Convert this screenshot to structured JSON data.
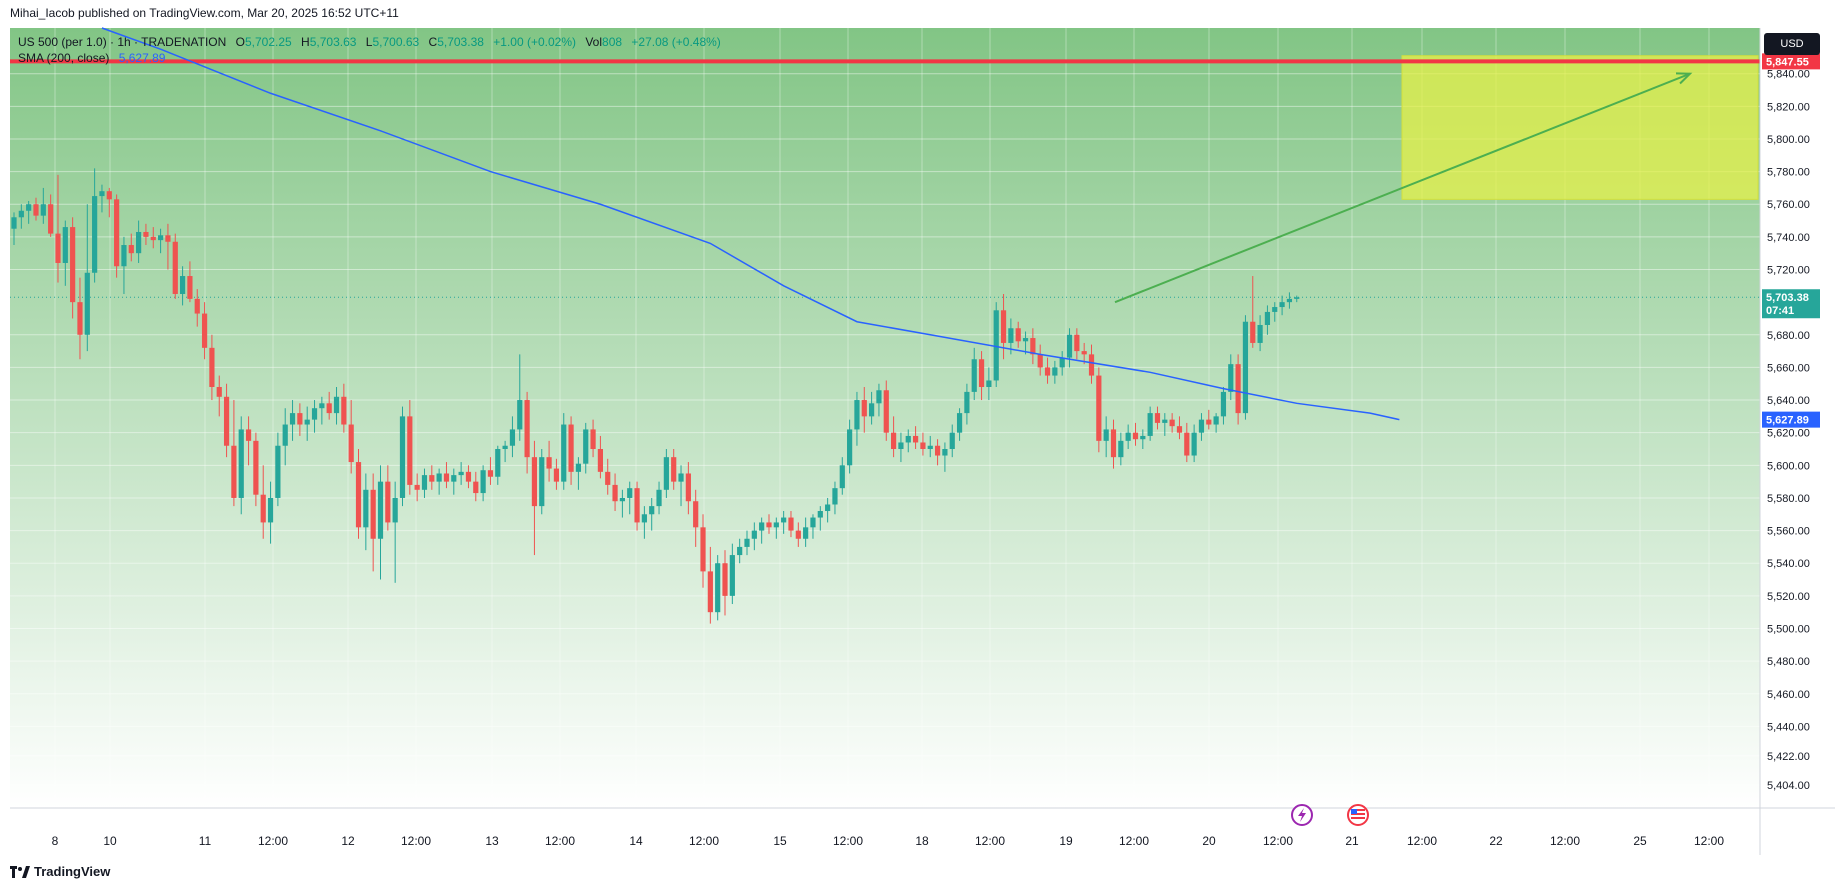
{
  "header": {
    "published_by": "Mihai_Iacob published on TradingView.com, Mar 20, 2025 16:52 UTC+11"
  },
  "legend": {
    "symbol": "US 500 (per 1.0) · 1h · TRADENATION",
    "o_label": "O",
    "o_value": "5,702.25",
    "h_label": "H",
    "h_value": "5,703.63",
    "l_label": "L",
    "l_value": "5,700.63",
    "c_label": "C",
    "c_value": "5,703.38",
    "change": "+1.00 (+0.02%)",
    "vol_label": "Vol",
    "vol_value": "808",
    "vol_change": "+27.08 (+0.48%)",
    "sma_label": "SMA (200, close)",
    "sma_value": "5,627.89"
  },
  "currency_label": "USD",
  "logo_text": "TradingView",
  "colors": {
    "up": "#26a69a",
    "down": "#ef5350",
    "sma": "#2962ff",
    "resistance": "#f23645",
    "target_box": "#e5f04a",
    "arrow": "#4caf50",
    "bg_top": "#82c585",
    "bg_bottom": "#ffffff"
  },
  "chart_data": {
    "type": "candlestick",
    "ylim": [
      5390,
      5868
    ],
    "y_ticks": [
      "5,840.00",
      "5,820.00",
      "5,800.00",
      "5,780.00",
      "5,760.00",
      "5,740.00",
      "5,720.00",
      "5,680.00",
      "5,660.00",
      "5,640.00",
      "5,620.00",
      "5,600.00",
      "5,580.00",
      "5,560.00",
      "5,540.00",
      "5,520.00",
      "5,500.00",
      "5,480.00",
      "5,460.00",
      "5,440.00",
      "5,422.00",
      "5,404.00"
    ],
    "x_ticks": [
      "8",
      "10",
      "11",
      "12:00",
      "12",
      "12:00",
      "13",
      "12:00",
      "14",
      "12:00",
      "15",
      "12:00",
      "18",
      "12:00",
      "19",
      "12:00",
      "20",
      "12:00",
      "21",
      "12:00",
      "22",
      "12:00",
      "25",
      "12:00"
    ],
    "resistance_level": 5847.55,
    "resistance_label": "5,847.55",
    "last_price_label": "5,703.38",
    "countdown_label": "07:41",
    "sma_label": "5,627.89",
    "target_zone": {
      "y_top": 5851,
      "y_bottom": 5763
    },
    "projection": {
      "from": 5700,
      "to": 5840
    },
    "candles": [
      {
        "o": 5745,
        "h": 5755,
        "l": 5735,
        "c": 5752
      },
      {
        "o": 5752,
        "h": 5760,
        "l": 5745,
        "c": 5756
      },
      {
        "o": 5756,
        "h": 5762,
        "l": 5748,
        "c": 5760
      },
      {
        "o": 5760,
        "h": 5764,
        "l": 5750,
        "c": 5753
      },
      {
        "o": 5753,
        "h": 5770,
        "l": 5748,
        "c": 5760
      },
      {
        "o": 5760,
        "h": 5766,
        "l": 5740,
        "c": 5742
      },
      {
        "o": 5742,
        "h": 5778,
        "l": 5712,
        "c": 5724
      },
      {
        "o": 5724,
        "h": 5750,
        "l": 5710,
        "c": 5746
      },
      {
        "o": 5746,
        "h": 5752,
        "l": 5690,
        "c": 5700
      },
      {
        "o": 5700,
        "h": 5715,
        "l": 5665,
        "c": 5680
      },
      {
        "o": 5680,
        "h": 5760,
        "l": 5670,
        "c": 5718
      },
      {
        "o": 5718,
        "h": 5782,
        "l": 5712,
        "c": 5765
      },
      {
        "o": 5765,
        "h": 5772,
        "l": 5755,
        "c": 5768
      },
      {
        "o": 5768,
        "h": 5770,
        "l": 5752,
        "c": 5763
      },
      {
        "o": 5763,
        "h": 5766,
        "l": 5715,
        "c": 5722
      },
      {
        "o": 5722,
        "h": 5740,
        "l": 5705,
        "c": 5735
      },
      {
        "o": 5735,
        "h": 5742,
        "l": 5725,
        "c": 5730
      },
      {
        "o": 5730,
        "h": 5750,
        "l": 5724,
        "c": 5743
      },
      {
        "o": 5743,
        "h": 5748,
        "l": 5735,
        "c": 5740
      },
      {
        "o": 5740,
        "h": 5746,
        "l": 5733,
        "c": 5738
      },
      {
        "o": 5738,
        "h": 5745,
        "l": 5730,
        "c": 5741
      },
      {
        "o": 5741,
        "h": 5748,
        "l": 5720,
        "c": 5737
      },
      {
        "o": 5737,
        "h": 5742,
        "l": 5702,
        "c": 5705
      },
      {
        "o": 5705,
        "h": 5722,
        "l": 5698,
        "c": 5716
      },
      {
        "o": 5716,
        "h": 5725,
        "l": 5700,
        "c": 5702
      },
      {
        "o": 5702,
        "h": 5708,
        "l": 5685,
        "c": 5693
      },
      {
        "o": 5693,
        "h": 5700,
        "l": 5665,
        "c": 5672
      },
      {
        "o": 5672,
        "h": 5680,
        "l": 5640,
        "c": 5648
      },
      {
        "o": 5648,
        "h": 5655,
        "l": 5630,
        "c": 5642
      },
      {
        "o": 5642,
        "h": 5650,
        "l": 5605,
        "c": 5612
      },
      {
        "o": 5612,
        "h": 5640,
        "l": 5575,
        "c": 5580
      },
      {
        "o": 5580,
        "h": 5630,
        "l": 5570,
        "c": 5622
      },
      {
        "o": 5622,
        "h": 5630,
        "l": 5600,
        "c": 5615
      },
      {
        "o": 5615,
        "h": 5620,
        "l": 5575,
        "c": 5582
      },
      {
        "o": 5582,
        "h": 5600,
        "l": 5555,
        "c": 5565
      },
      {
        "o": 5565,
        "h": 5590,
        "l": 5552,
        "c": 5580
      },
      {
        "o": 5580,
        "h": 5620,
        "l": 5575,
        "c": 5612
      },
      {
        "o": 5612,
        "h": 5635,
        "l": 5600,
        "c": 5625
      },
      {
        "o": 5625,
        "h": 5640,
        "l": 5615,
        "c": 5632
      },
      {
        "o": 5632,
        "h": 5638,
        "l": 5618,
        "c": 5625
      },
      {
        "o": 5625,
        "h": 5636,
        "l": 5615,
        "c": 5628
      },
      {
        "o": 5628,
        "h": 5640,
        "l": 5620,
        "c": 5635
      },
      {
        "o": 5635,
        "h": 5642,
        "l": 5625,
        "c": 5638
      },
      {
        "o": 5638,
        "h": 5645,
        "l": 5628,
        "c": 5632
      },
      {
        "o": 5632,
        "h": 5648,
        "l": 5625,
        "c": 5642
      },
      {
        "o": 5642,
        "h": 5650,
        "l": 5620,
        "c": 5625
      },
      {
        "o": 5625,
        "h": 5640,
        "l": 5595,
        "c": 5602
      },
      {
        "o": 5602,
        "h": 5610,
        "l": 5555,
        "c": 5562
      },
      {
        "o": 5562,
        "h": 5595,
        "l": 5548,
        "c": 5585
      },
      {
        "o": 5585,
        "h": 5595,
        "l": 5535,
        "c": 5555
      },
      {
        "o": 5555,
        "h": 5600,
        "l": 5530,
        "c": 5590
      },
      {
        "o": 5590,
        "h": 5600,
        "l": 5560,
        "c": 5565
      },
      {
        "o": 5565,
        "h": 5590,
        "l": 5528,
        "c": 5580
      },
      {
        "o": 5580,
        "h": 5636,
        "l": 5575,
        "c": 5630
      },
      {
        "o": 5630,
        "h": 5640,
        "l": 5582,
        "c": 5588
      },
      {
        "o": 5588,
        "h": 5595,
        "l": 5578,
        "c": 5585
      },
      {
        "o": 5585,
        "h": 5598,
        "l": 5580,
        "c": 5594
      },
      {
        "o": 5594,
        "h": 5600,
        "l": 5585,
        "c": 5590
      },
      {
        "o": 5590,
        "h": 5598,
        "l": 5582,
        "c": 5595
      },
      {
        "o": 5595,
        "h": 5602,
        "l": 5586,
        "c": 5590
      },
      {
        "o": 5590,
        "h": 5598,
        "l": 5582,
        "c": 5594
      },
      {
        "o": 5594,
        "h": 5602,
        "l": 5588,
        "c": 5596
      },
      {
        "o": 5596,
        "h": 5600,
        "l": 5586,
        "c": 5590
      },
      {
        "o": 5590,
        "h": 5596,
        "l": 5578,
        "c": 5583
      },
      {
        "o": 5583,
        "h": 5600,
        "l": 5578,
        "c": 5597
      },
      {
        "o": 5597,
        "h": 5605,
        "l": 5588,
        "c": 5593
      },
      {
        "o": 5593,
        "h": 5612,
        "l": 5588,
        "c": 5610
      },
      {
        "o": 5610,
        "h": 5615,
        "l": 5602,
        "c": 5612
      },
      {
        "o": 5612,
        "h": 5630,
        "l": 5605,
        "c": 5622
      },
      {
        "o": 5622,
        "h": 5668,
        "l": 5615,
        "c": 5640
      },
      {
        "o": 5640,
        "h": 5645,
        "l": 5595,
        "c": 5605
      },
      {
        "o": 5605,
        "h": 5615,
        "l": 5545,
        "c": 5575
      },
      {
        "o": 5575,
        "h": 5610,
        "l": 5570,
        "c": 5605
      },
      {
        "o": 5605,
        "h": 5615,
        "l": 5590,
        "c": 5598
      },
      {
        "o": 5598,
        "h": 5604,
        "l": 5585,
        "c": 5590
      },
      {
        "o": 5590,
        "h": 5632,
        "l": 5585,
        "c": 5625
      },
      {
        "o": 5625,
        "h": 5630,
        "l": 5588,
        "c": 5596
      },
      {
        "o": 5596,
        "h": 5605,
        "l": 5585,
        "c": 5601
      },
      {
        "o": 5601,
        "h": 5626,
        "l": 5595,
        "c": 5622
      },
      {
        "o": 5622,
        "h": 5628,
        "l": 5605,
        "c": 5610
      },
      {
        "o": 5610,
        "h": 5618,
        "l": 5592,
        "c": 5596
      },
      {
        "o": 5596,
        "h": 5604,
        "l": 5582,
        "c": 5588
      },
      {
        "o": 5588,
        "h": 5595,
        "l": 5572,
        "c": 5578
      },
      {
        "o": 5578,
        "h": 5585,
        "l": 5568,
        "c": 5580
      },
      {
        "o": 5580,
        "h": 5590,
        "l": 5570,
        "c": 5586
      },
      {
        "o": 5586,
        "h": 5590,
        "l": 5560,
        "c": 5565
      },
      {
        "o": 5565,
        "h": 5575,
        "l": 5555,
        "c": 5570
      },
      {
        "o": 5570,
        "h": 5580,
        "l": 5560,
        "c": 5575
      },
      {
        "o": 5575,
        "h": 5590,
        "l": 5570,
        "c": 5585
      },
      {
        "o": 5585,
        "h": 5610,
        "l": 5580,
        "c": 5605
      },
      {
        "o": 5605,
        "h": 5610,
        "l": 5585,
        "c": 5590
      },
      {
        "o": 5590,
        "h": 5600,
        "l": 5575,
        "c": 5595
      },
      {
        "o": 5595,
        "h": 5602,
        "l": 5570,
        "c": 5578
      },
      {
        "o": 5578,
        "h": 5585,
        "l": 5550,
        "c": 5562
      },
      {
        "o": 5562,
        "h": 5570,
        "l": 5525,
        "c": 5535
      },
      {
        "o": 5535,
        "h": 5550,
        "l": 5503,
        "c": 5510
      },
      {
        "o": 5510,
        "h": 5545,
        "l": 5505,
        "c": 5540
      },
      {
        "o": 5540,
        "h": 5548,
        "l": 5508,
        "c": 5520
      },
      {
        "o": 5520,
        "h": 5552,
        "l": 5515,
        "c": 5545
      },
      {
        "o": 5545,
        "h": 5555,
        "l": 5540,
        "c": 5550
      },
      {
        "o": 5550,
        "h": 5560,
        "l": 5545,
        "c": 5555
      },
      {
        "o": 5555,
        "h": 5565,
        "l": 5548,
        "c": 5560
      },
      {
        "o": 5560,
        "h": 5568,
        "l": 5552,
        "c": 5565
      },
      {
        "o": 5565,
        "h": 5570,
        "l": 5558,
        "c": 5562
      },
      {
        "o": 5562,
        "h": 5568,
        "l": 5555,
        "c": 5565
      },
      {
        "o": 5565,
        "h": 5572,
        "l": 5558,
        "c": 5568
      },
      {
        "o": 5568,
        "h": 5572,
        "l": 5556,
        "c": 5560
      },
      {
        "o": 5560,
        "h": 5565,
        "l": 5550,
        "c": 5555
      },
      {
        "o": 5555,
        "h": 5568,
        "l": 5550,
        "c": 5562
      },
      {
        "o": 5562,
        "h": 5570,
        "l": 5555,
        "c": 5568
      },
      {
        "o": 5568,
        "h": 5575,
        "l": 5560,
        "c": 5572
      },
      {
        "o": 5572,
        "h": 5580,
        "l": 5565,
        "c": 5576
      },
      {
        "o": 5576,
        "h": 5590,
        "l": 5570,
        "c": 5586
      },
      {
        "o": 5586,
        "h": 5605,
        "l": 5582,
        "c": 5600
      },
      {
        "o": 5600,
        "h": 5628,
        "l": 5595,
        "c": 5622
      },
      {
        "o": 5622,
        "h": 5645,
        "l": 5612,
        "c": 5640
      },
      {
        "o": 5640,
        "h": 5648,
        "l": 5620,
        "c": 5630
      },
      {
        "o": 5630,
        "h": 5645,
        "l": 5625,
        "c": 5638
      },
      {
        "o": 5638,
        "h": 5650,
        "l": 5630,
        "c": 5646
      },
      {
        "o": 5646,
        "h": 5652,
        "l": 5615,
        "c": 5620
      },
      {
        "o": 5620,
        "h": 5630,
        "l": 5605,
        "c": 5610
      },
      {
        "o": 5610,
        "h": 5620,
        "l": 5602,
        "c": 5614
      },
      {
        "o": 5614,
        "h": 5622,
        "l": 5608,
        "c": 5618
      },
      {
        "o": 5618,
        "h": 5624,
        "l": 5610,
        "c": 5614
      },
      {
        "o": 5614,
        "h": 5620,
        "l": 5606,
        "c": 5610
      },
      {
        "o": 5610,
        "h": 5618,
        "l": 5605,
        "c": 5612
      },
      {
        "o": 5612,
        "h": 5616,
        "l": 5600,
        "c": 5606
      },
      {
        "o": 5606,
        "h": 5614,
        "l": 5596,
        "c": 5610
      },
      {
        "o": 5610,
        "h": 5625,
        "l": 5605,
        "c": 5620
      },
      {
        "o": 5620,
        "h": 5635,
        "l": 5615,
        "c": 5632
      },
      {
        "o": 5632,
        "h": 5650,
        "l": 5625,
        "c": 5645
      },
      {
        "o": 5645,
        "h": 5672,
        "l": 5640,
        "c": 5665
      },
      {
        "o": 5665,
        "h": 5670,
        "l": 5640,
        "c": 5648
      },
      {
        "o": 5648,
        "h": 5660,
        "l": 5640,
        "c": 5652
      },
      {
        "o": 5652,
        "h": 5700,
        "l": 5648,
        "c": 5695
      },
      {
        "o": 5695,
        "h": 5705,
        "l": 5665,
        "c": 5675
      },
      {
        "o": 5675,
        "h": 5690,
        "l": 5668,
        "c": 5684
      },
      {
        "o": 5684,
        "h": 5688,
        "l": 5672,
        "c": 5676
      },
      {
        "o": 5676,
        "h": 5682,
        "l": 5668,
        "c": 5678
      },
      {
        "o": 5678,
        "h": 5684,
        "l": 5662,
        "c": 5668
      },
      {
        "o": 5668,
        "h": 5674,
        "l": 5655,
        "c": 5660
      },
      {
        "o": 5660,
        "h": 5666,
        "l": 5650,
        "c": 5655
      },
      {
        "o": 5655,
        "h": 5664,
        "l": 5650,
        "c": 5660
      },
      {
        "o": 5660,
        "h": 5670,
        "l": 5655,
        "c": 5666
      },
      {
        "o": 5666,
        "h": 5684,
        "l": 5660,
        "c": 5680
      },
      {
        "o": 5680,
        "h": 5684,
        "l": 5665,
        "c": 5670
      },
      {
        "o": 5670,
        "h": 5675,
        "l": 5662,
        "c": 5668
      },
      {
        "o": 5668,
        "h": 5674,
        "l": 5650,
        "c": 5655
      },
      {
        "o": 5655,
        "h": 5660,
        "l": 5608,
        "c": 5615
      },
      {
        "o": 5615,
        "h": 5630,
        "l": 5605,
        "c": 5622
      },
      {
        "o": 5622,
        "h": 5628,
        "l": 5598,
        "c": 5605
      },
      {
        "o": 5605,
        "h": 5620,
        "l": 5600,
        "c": 5615
      },
      {
        "o": 5615,
        "h": 5625,
        "l": 5610,
        "c": 5620
      },
      {
        "o": 5620,
        "h": 5626,
        "l": 5612,
        "c": 5616
      },
      {
        "o": 5616,
        "h": 5622,
        "l": 5610,
        "c": 5618
      },
      {
        "o": 5618,
        "h": 5636,
        "l": 5615,
        "c": 5632
      },
      {
        "o": 5632,
        "h": 5636,
        "l": 5622,
        "c": 5626
      },
      {
        "o": 5626,
        "h": 5632,
        "l": 5618,
        "c": 5628
      },
      {
        "o": 5628,
        "h": 5632,
        "l": 5620,
        "c": 5624
      },
      {
        "o": 5624,
        "h": 5630,
        "l": 5616,
        "c": 5620
      },
      {
        "o": 5620,
        "h": 5626,
        "l": 5602,
        "c": 5606
      },
      {
        "o": 5606,
        "h": 5625,
        "l": 5602,
        "c": 5620
      },
      {
        "o": 5620,
        "h": 5632,
        "l": 5615,
        "c": 5628
      },
      {
        "o": 5628,
        "h": 5634,
        "l": 5622,
        "c": 5625
      },
      {
        "o": 5625,
        "h": 5632,
        "l": 5620,
        "c": 5630
      },
      {
        "o": 5630,
        "h": 5648,
        "l": 5625,
        "c": 5645
      },
      {
        "o": 5645,
        "h": 5668,
        "l": 5640,
        "c": 5662
      },
      {
        "o": 5662,
        "h": 5668,
        "l": 5625,
        "c": 5632
      },
      {
        "o": 5632,
        "h": 5692,
        "l": 5628,
        "c": 5688
      },
      {
        "o": 5688,
        "h": 5716,
        "l": 5672,
        "c": 5675
      },
      {
        "o": 5675,
        "h": 5692,
        "l": 5670,
        "c": 5686
      },
      {
        "o": 5686,
        "h": 5698,
        "l": 5680,
        "c": 5694
      },
      {
        "o": 5694,
        "h": 5700,
        "l": 5688,
        "c": 5697
      },
      {
        "o": 5697,
        "h": 5704,
        "l": 5692,
        "c": 5700
      },
      {
        "o": 5700,
        "h": 5706,
        "l": 5696,
        "c": 5702
      },
      {
        "o": 5702,
        "h": 5704,
        "l": 5700,
        "c": 5703
      }
    ],
    "sma": [
      {
        "i": 12,
        "v": 5868
      },
      {
        "i": 20,
        "v": 5855
      },
      {
        "i": 35,
        "v": 5828
      },
      {
        "i": 50,
        "v": 5805
      },
      {
        "i": 65,
        "v": 5780
      },
      {
        "i": 80,
        "v": 5760
      },
      {
        "i": 95,
        "v": 5736
      },
      {
        "i": 105,
        "v": 5710
      },
      {
        "i": 115,
        "v": 5688
      },
      {
        "i": 125,
        "v": 5680
      },
      {
        "i": 140,
        "v": 5668
      },
      {
        "i": 155,
        "v": 5657
      },
      {
        "i": 165,
        "v": 5647
      },
      {
        "i": 175,
        "v": 5638
      },
      {
        "i": 185,
        "v": 5632
      },
      {
        "i": 189,
        "v": 5628
      }
    ]
  }
}
